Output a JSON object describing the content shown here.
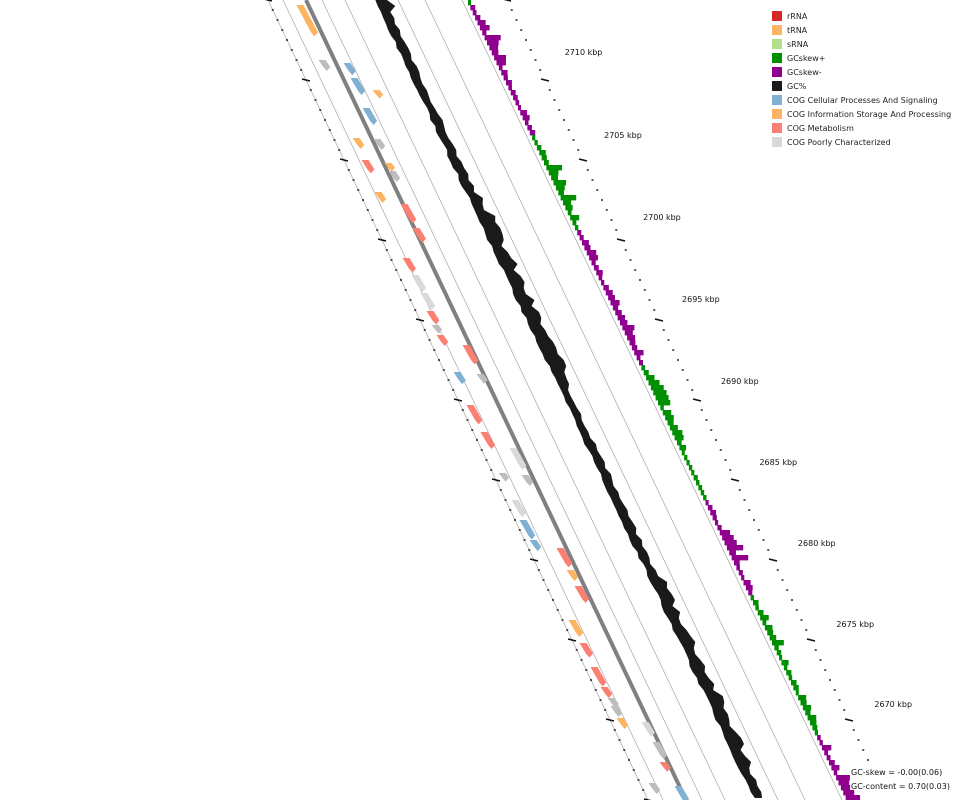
{
  "legend": [
    {
      "label": "rRNA",
      "color": "#d62728",
      "icon": "legend-swatch"
    },
    {
      "label": "tRNA",
      "color": "#fdb462",
      "icon": "legend-swatch"
    },
    {
      "label": "sRNA",
      "color": "#b2df8a",
      "icon": "legend-swatch"
    },
    {
      "label": "GCskew+",
      "color": "#008f00",
      "icon": "legend-swatch"
    },
    {
      "label": "GCskew-",
      "color": "#8f008f",
      "icon": "legend-swatch"
    },
    {
      "label": "GC%",
      "color": "#1a1a1a",
      "icon": "legend-swatch"
    },
    {
      "label": "COG Cellular Processes And Signaling",
      "color": "#80b1d3",
      "icon": "legend-swatch"
    },
    {
      "label": "COG Information Storage And Processing",
      "color": "#fdb462",
      "icon": "legend-swatch"
    },
    {
      "label": "COG Metabolism",
      "color": "#fb8072",
      "icon": "legend-swatch"
    },
    {
      "label": "COG Poorly Characterized",
      "color": "#d9d9d9",
      "icon": "legend-swatch"
    }
  ],
  "ticks": [
    "2710 kbp",
    "2705 kbp",
    "2700 kbp",
    "2695 kbp",
    "2690 kbp",
    "2685 kbp",
    "2680 kbp",
    "2675 kbp",
    "2670 kbp"
  ],
  "stats": {
    "gc_skew": "GC-skew = -0.00(0.06)",
    "gc_content": "GC-content = 0.70(0.03)"
  },
  "colors": {
    "backbone": "#808080",
    "guide": "#b0b0b0",
    "gc_line": "#1a1a1a",
    "skew_pos": "#008f00",
    "skew_neg": "#8f008f",
    "gene_gray": "#bdbdbd"
  }
}
